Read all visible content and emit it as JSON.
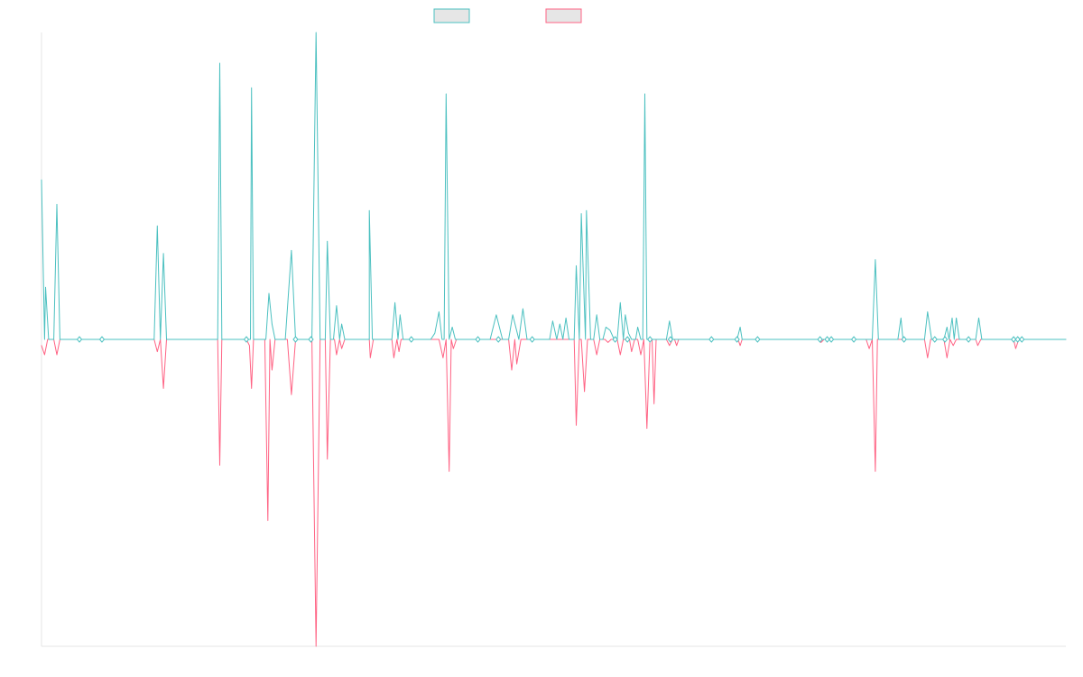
{
  "chart_data": {
    "type": "line",
    "title": "",
    "xlabel": "",
    "ylabel": "",
    "grid": false,
    "legend_position": "top-center",
    "xlim": [
      0,
      100
    ],
    "ylim": [
      -1,
      1
    ],
    "series": [
      {
        "color": "#4bc0c0",
        "points": [
          [
            0.0,
            0.52
          ],
          [
            0.3,
            0.0
          ],
          [
            0.4,
            0.17
          ],
          [
            0.7,
            0.0
          ],
          [
            1.2,
            0.0
          ],
          [
            1.5,
            0.44
          ],
          [
            1.8,
            0.0
          ],
          [
            3.7,
            0.0
          ],
          [
            5.9,
            0.0
          ],
          [
            11.0,
            0.0
          ],
          [
            11.3,
            0.37
          ],
          [
            11.6,
            0.0
          ],
          [
            11.9,
            0.28
          ],
          [
            12.2,
            0.0
          ],
          [
            17.2,
            0.0
          ],
          [
            17.4,
            0.9
          ],
          [
            17.6,
            0.0
          ],
          [
            20.0,
            0.0
          ],
          [
            20.4,
            0.0
          ],
          [
            20.5,
            0.82
          ],
          [
            20.7,
            0.0
          ],
          [
            21.9,
            0.0
          ],
          [
            22.2,
            0.15
          ],
          [
            22.5,
            0.05
          ],
          [
            22.8,
            0.0
          ],
          [
            23.8,
            0.0
          ],
          [
            24.4,
            0.29
          ],
          [
            24.8,
            0.0
          ],
          [
            26.4,
            0.0
          ],
          [
            26.8,
            1.0
          ],
          [
            27.2,
            0.0
          ],
          [
            27.7,
            0.0
          ],
          [
            27.9,
            0.32
          ],
          [
            28.2,
            0.0
          ],
          [
            28.5,
            0.0
          ],
          [
            28.8,
            0.11
          ],
          [
            29.1,
            0.0
          ],
          [
            29.3,
            0.05
          ],
          [
            29.6,
            0.0
          ],
          [
            32.0,
            0.0
          ],
          [
            32.0,
            0.42
          ],
          [
            32.3,
            0.0
          ],
          [
            33.5,
            0.0
          ],
          [
            34.2,
            0.0
          ],
          [
            34.5,
            0.12
          ],
          [
            34.8,
            0.0
          ],
          [
            35.0,
            0.08
          ],
          [
            35.3,
            0.0
          ],
          [
            36.2,
            0.0
          ],
          [
            38.0,
            0.0
          ],
          [
            38.4,
            0.02
          ],
          [
            38.8,
            0.09
          ],
          [
            39.1,
            0.0
          ],
          [
            39.3,
            0.0
          ],
          [
            39.5,
            0.8
          ],
          [
            39.8,
            0.0
          ],
          [
            40.1,
            0.04
          ],
          [
            40.4,
            0.0
          ],
          [
            42.6,
            0.0
          ],
          [
            43.8,
            0.0
          ],
          [
            44.4,
            0.08
          ],
          [
            45.0,
            0.0
          ],
          [
            45.6,
            0.0
          ],
          [
            46.0,
            0.08
          ],
          [
            46.6,
            0.0
          ],
          [
            47.0,
            0.1
          ],
          [
            47.4,
            0.0
          ],
          [
            49.6,
            0.0
          ],
          [
            49.9,
            0.06
          ],
          [
            50.3,
            0.0
          ],
          [
            50.6,
            0.05
          ],
          [
            50.9,
            0.0
          ],
          [
            51.2,
            0.07
          ],
          [
            51.5,
            0.0
          ],
          [
            52.0,
            0.0
          ],
          [
            52.2,
            0.24
          ],
          [
            52.5,
            0.0
          ],
          [
            52.7,
            0.41
          ],
          [
            53.1,
            0.0
          ],
          [
            53.2,
            0.42
          ],
          [
            53.6,
            0.0
          ],
          [
            53.9,
            0.0
          ],
          [
            54.2,
            0.08
          ],
          [
            54.5,
            0.0
          ],
          [
            54.8,
            0.0
          ],
          [
            55.1,
            0.04
          ],
          [
            55.5,
            0.03
          ],
          [
            55.9,
            0.0
          ],
          [
            56.2,
            0.0
          ],
          [
            56.5,
            0.12
          ],
          [
            56.8,
            0.0
          ],
          [
            57.0,
            0.08
          ],
          [
            57.3,
            0.02
          ],
          [
            57.6,
            0.0
          ],
          [
            58.0,
            0.0
          ],
          [
            58.2,
            0.04
          ],
          [
            58.5,
            0.0
          ],
          [
            58.7,
            0.0
          ],
          [
            58.9,
            0.8
          ],
          [
            59.1,
            0.0
          ],
          [
            59.8,
            0.0
          ],
          [
            59.9,
            0.0
          ],
          [
            61.0,
            0.0
          ],
          [
            61.3,
            0.06
          ],
          [
            61.6,
            0.0
          ],
          [
            61.8,
            0.0
          ],
          [
            65.5,
            0.0
          ],
          [
            67.9,
            0.0
          ],
          [
            68.2,
            0.04
          ],
          [
            68.4,
            0.0
          ],
          [
            69.9,
            0.0
          ],
          [
            71.9,
            0.0
          ],
          [
            76.0,
            0.0
          ],
          [
            76.4,
            0.0
          ],
          [
            76.7,
            0.0
          ],
          [
            77.0,
            0.0
          ],
          [
            77.3,
            0.0
          ],
          [
            79.3,
            0.0
          ],
          [
            80.5,
            0.0
          ],
          [
            81.1,
            0.0
          ],
          [
            81.4,
            0.26
          ],
          [
            81.7,
            0.0
          ],
          [
            83.6,
            0.0
          ],
          [
            83.9,
            0.07
          ],
          [
            84.1,
            0.0
          ],
          [
            86.2,
            0.0
          ],
          [
            86.5,
            0.09
          ],
          [
            86.9,
            0.0
          ],
          [
            87.4,
            0.0
          ],
          [
            88.1,
            0.0
          ],
          [
            88.4,
            0.04
          ],
          [
            88.6,
            0.0
          ],
          [
            88.9,
            0.07
          ],
          [
            89.1,
            0.0
          ],
          [
            89.3,
            0.07
          ],
          [
            89.6,
            0.0
          ],
          [
            90.5,
            0.0
          ],
          [
            91.2,
            0.0
          ],
          [
            91.5,
            0.07
          ],
          [
            91.8,
            0.0
          ],
          [
            94.9,
            0.0
          ],
          [
            95.3,
            0.0
          ],
          [
            95.6,
            0.0
          ],
          [
            96.0,
            0.0
          ],
          [
            100.0,
            0.0
          ]
        ],
        "markers": [
          3.7,
          5.9,
          20.0,
          24.8,
          26.3,
          36.1,
          42.6,
          44.6,
          47.9,
          56.0,
          57.2,
          59.4,
          61.4,
          65.4,
          67.9,
          69.9,
          76.0,
          76.7,
          77.1,
          79.3,
          84.2,
          87.2,
          88.2,
          90.5,
          94.9,
          95.3,
          95.7
        ]
      },
      {
        "color": "#ff6384",
        "points": [
          [
            0.0,
            -0.02
          ],
          [
            0.3,
            -0.05
          ],
          [
            0.6,
            0.0
          ],
          [
            1.2,
            0.0
          ],
          [
            1.5,
            -0.05
          ],
          [
            1.8,
            0.0
          ],
          [
            11.0,
            0.0
          ],
          [
            11.3,
            -0.04
          ],
          [
            11.6,
            0.0
          ],
          [
            11.9,
            -0.16
          ],
          [
            12.2,
            0.0
          ],
          [
            17.2,
            0.0
          ],
          [
            17.4,
            -0.41
          ],
          [
            17.6,
            0.0
          ],
          [
            20.0,
            0.0
          ],
          [
            20.3,
            -0.02
          ],
          [
            20.5,
            -0.16
          ],
          [
            20.7,
            0.0
          ],
          [
            21.8,
            0.0
          ],
          [
            22.1,
            -0.59
          ],
          [
            22.3,
            0.0
          ],
          [
            22.5,
            -0.1
          ],
          [
            22.8,
            0.0
          ],
          [
            24.0,
            0.0
          ],
          [
            24.4,
            -0.18
          ],
          [
            24.8,
            0.0
          ],
          [
            26.4,
            0.0
          ],
          [
            26.8,
            -1.0
          ],
          [
            27.2,
            0.0
          ],
          [
            27.7,
            0.0
          ],
          [
            27.9,
            -0.39
          ],
          [
            28.2,
            0.0
          ],
          [
            28.6,
            0.0
          ],
          [
            28.8,
            -0.05
          ],
          [
            29.1,
            0.0
          ],
          [
            29.3,
            -0.03
          ],
          [
            29.6,
            0.0
          ],
          [
            32.0,
            0.0
          ],
          [
            32.1,
            -0.06
          ],
          [
            32.4,
            0.0
          ],
          [
            33.5,
            0.0
          ],
          [
            34.2,
            0.0
          ],
          [
            34.4,
            -0.06
          ],
          [
            34.7,
            0.0
          ],
          [
            34.9,
            -0.04
          ],
          [
            35.1,
            0.0
          ],
          [
            38.8,
            0.0
          ],
          [
            39.2,
            -0.06
          ],
          [
            39.5,
            0.0
          ],
          [
            39.8,
            -0.43
          ],
          [
            40.0,
            0.0
          ],
          [
            40.2,
            -0.03
          ],
          [
            40.5,
            0.0
          ],
          [
            45.6,
            0.0
          ],
          [
            45.9,
            -0.1
          ],
          [
            46.2,
            0.0
          ],
          [
            46.4,
            -0.08
          ],
          [
            46.8,
            0.0
          ],
          [
            51.8,
            0.0
          ],
          [
            52.0,
            0.0
          ],
          [
            52.2,
            -0.28
          ],
          [
            52.5,
            0.0
          ],
          [
            52.7,
            0.0
          ],
          [
            53.0,
            -0.17
          ],
          [
            53.3,
            0.0
          ],
          [
            53.9,
            0.0
          ],
          [
            54.2,
            -0.05
          ],
          [
            54.5,
            0.0
          ],
          [
            55.0,
            0.0
          ],
          [
            55.3,
            -0.01
          ],
          [
            55.6,
            0.0
          ],
          [
            56.2,
            0.0
          ],
          [
            56.5,
            -0.05
          ],
          [
            56.8,
            0.0
          ],
          [
            57.4,
            0.0
          ],
          [
            57.6,
            -0.04
          ],
          [
            57.9,
            0.0
          ],
          [
            58.2,
            0.0
          ],
          [
            58.5,
            -0.05
          ],
          [
            58.8,
            0.0
          ],
          [
            59.1,
            -0.29
          ],
          [
            59.4,
            0.0
          ],
          [
            59.6,
            0.0
          ],
          [
            59.8,
            -0.21
          ],
          [
            60.0,
            0.0
          ],
          [
            61.0,
            0.0
          ],
          [
            61.3,
            -0.02
          ],
          [
            61.6,
            0.0
          ],
          [
            61.8,
            0.0
          ],
          [
            62.0,
            -0.02
          ],
          [
            62.2,
            0.0
          ],
          [
            68.0,
            0.0
          ],
          [
            68.2,
            -0.02
          ],
          [
            68.4,
            0.0
          ],
          [
            75.8,
            0.0
          ],
          [
            76.1,
            -0.01
          ],
          [
            76.4,
            0.0
          ],
          [
            79.3,
            0.0
          ],
          [
            80.5,
            0.0
          ],
          [
            80.8,
            -0.03
          ],
          [
            81.1,
            0.0
          ],
          [
            81.4,
            -0.43
          ],
          [
            81.6,
            0.0
          ],
          [
            86.2,
            0.0
          ],
          [
            86.5,
            -0.06
          ],
          [
            86.8,
            0.0
          ],
          [
            88.1,
            0.0
          ],
          [
            88.4,
            -0.06
          ],
          [
            88.7,
            0.0
          ],
          [
            89.0,
            -0.02
          ],
          [
            89.3,
            0.0
          ],
          [
            90.5,
            0.0
          ],
          [
            91.2,
            0.0
          ],
          [
            91.4,
            -0.02
          ],
          [
            91.7,
            0.0
          ],
          [
            94.9,
            0.0
          ],
          [
            95.1,
            -0.03
          ],
          [
            95.4,
            0.0
          ],
          [
            100.0,
            0.0
          ]
        ]
      }
    ]
  }
}
